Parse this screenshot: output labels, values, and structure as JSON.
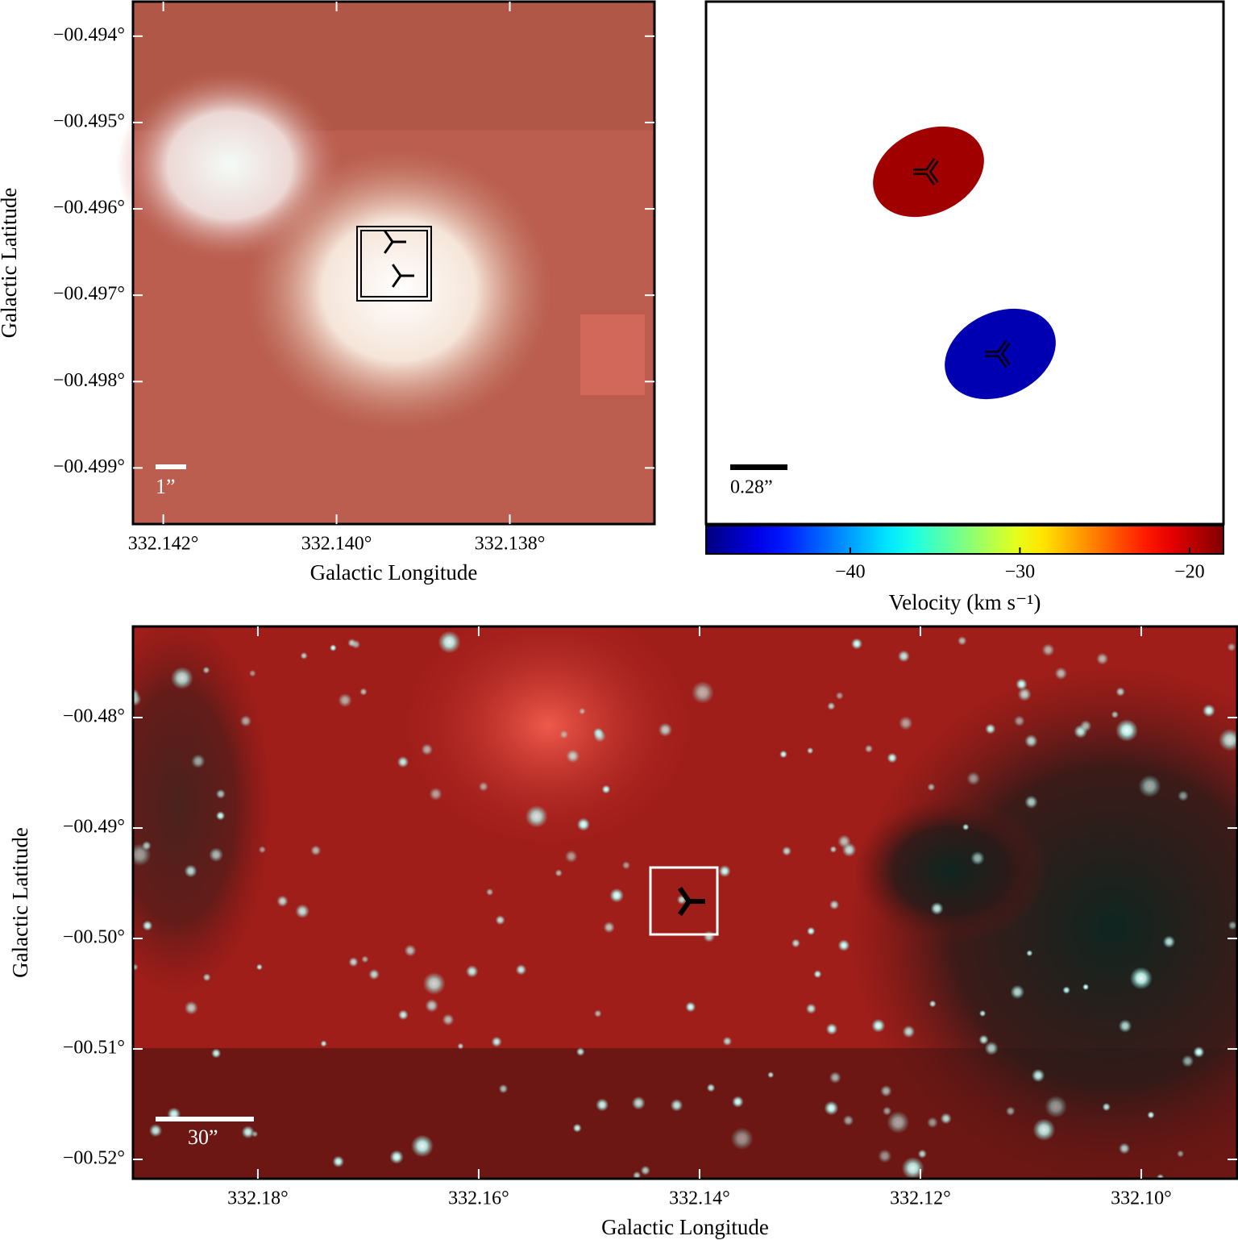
{
  "chart_data": [
    {
      "type": "image",
      "xlabel": "Galactic Longitude",
      "ylabel": "Galactic Latitude",
      "xlim": [
        332.14235,
        332.13633
      ],
      "ylim": [
        -0.49965,
        -0.4936
      ],
      "xticks": [
        {
          "value": 332.142,
          "label": "332.142°"
        },
        {
          "value": 332.14,
          "label": "332.140°"
        },
        {
          "value": 332.138,
          "label": "332.138°"
        }
      ],
      "yticks": [
        {
          "value": -0.494,
          "label": "−00.494°"
        },
        {
          "value": -0.495,
          "label": "−00.495°"
        },
        {
          "value": -0.496,
          "label": "−00.496°"
        },
        {
          "value": -0.497,
          "label": "−00.497°"
        },
        {
          "value": -0.498,
          "label": "−00.498°"
        },
        {
          "value": -0.499,
          "label": "−00.499°"
        }
      ],
      "scale_label": "1”"
    },
    {
      "type": "velocity-map",
      "values": [
        -19,
        -47
      ],
      "colormap": "jet",
      "clim": [
        -48.5,
        -18.0
      ],
      "cticks": [
        {
          "value": -40,
          "label": "−40"
        },
        {
          "value": -30,
          "label": "−30"
        },
        {
          "value": -20,
          "label": "−20"
        }
      ],
      "colorbar_label": "Velocity (km s⁻¹)",
      "scale_label": "0.28”"
    },
    {
      "type": "image",
      "xlabel": "Galactic Longitude",
      "ylabel": "Galactic Latitude",
      "xlim": [
        332.19131,
        332.09131
      ],
      "ylim": [
        -0.52175,
        -0.47175
      ],
      "xticks": [
        {
          "value": 332.18,
          "label": "332.18°"
        },
        {
          "value": 332.16,
          "label": "332.16°"
        },
        {
          "value": 332.14,
          "label": "332.14°"
        },
        {
          "value": 332.12,
          "label": "332.12°"
        },
        {
          "value": 332.1,
          "label": "332.10°"
        }
      ],
      "yticks": [
        {
          "value": -0.48,
          "label": "−00.48°"
        },
        {
          "value": -0.49,
          "label": "−00.49°"
        },
        {
          "value": -0.5,
          "label": "−00.50°"
        },
        {
          "value": -0.51,
          "label": "−00.51°"
        },
        {
          "value": -0.52,
          "label": "−00.52°"
        }
      ],
      "scale_label": "30”"
    }
  ]
}
